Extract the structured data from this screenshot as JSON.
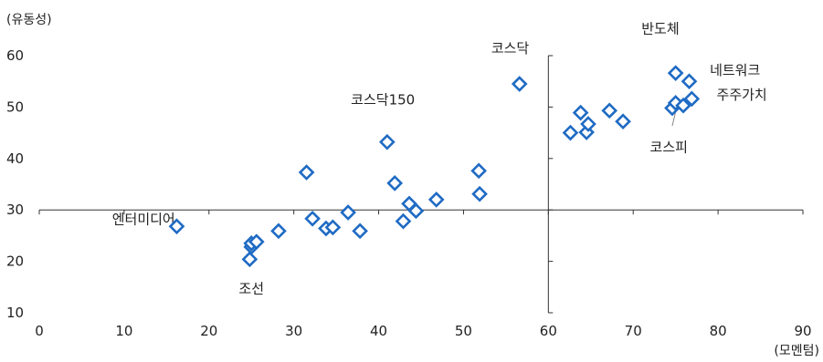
{
  "chart_data": {
    "type": "scatter",
    "xlabel": "(모멘텀)",
    "ylabel": "(유동성)",
    "xlim": [
      0,
      90
    ],
    "ylim": [
      10,
      60
    ],
    "xticks": [
      "0",
      "10",
      "20",
      "30",
      "40",
      "50",
      "60",
      "70",
      "80",
      "90"
    ],
    "yticks": [
      "10",
      "20",
      "30",
      "40",
      "50",
      "60"
    ],
    "reference_lines": {
      "x": 60,
      "y": 30
    },
    "grid": false,
    "marker": "diamond",
    "color": "#1f6bc4",
    "points": [
      {
        "x": 16.2,
        "y": 26.8
      },
      {
        "x": 24.8,
        "y": 20.4
      },
      {
        "x": 25.0,
        "y": 22.8
      },
      {
        "x": 25.0,
        "y": 23.5
      },
      {
        "x": 25.6,
        "y": 23.8
      },
      {
        "x": 28.2,
        "y": 25.9
      },
      {
        "x": 31.5,
        "y": 37.3
      },
      {
        "x": 32.2,
        "y": 28.3
      },
      {
        "x": 33.8,
        "y": 26.4
      },
      {
        "x": 34.6,
        "y": 26.6
      },
      {
        "x": 36.4,
        "y": 29.5
      },
      {
        "x": 37.8,
        "y": 25.9
      },
      {
        "x": 41.0,
        "y": 43.2
      },
      {
        "x": 41.9,
        "y": 35.2
      },
      {
        "x": 42.9,
        "y": 27.8
      },
      {
        "x": 43.6,
        "y": 31.2
      },
      {
        "x": 44.4,
        "y": 29.8
      },
      {
        "x": 46.8,
        "y": 32.0
      },
      {
        "x": 51.8,
        "y": 37.6
      },
      {
        "x": 51.9,
        "y": 33.1
      },
      {
        "x": 56.6,
        "y": 54.5
      },
      {
        "x": 62.6,
        "y": 45.0
      },
      {
        "x": 63.8,
        "y": 48.9
      },
      {
        "x": 64.5,
        "y": 45.1
      },
      {
        "x": 64.7,
        "y": 46.7
      },
      {
        "x": 67.2,
        "y": 49.3
      },
      {
        "x": 68.8,
        "y": 47.2
      },
      {
        "x": 74.6,
        "y": 49.8
      },
      {
        "x": 75.0,
        "y": 50.8
      },
      {
        "x": 75.0,
        "y": 56.6
      },
      {
        "x": 75.9,
        "y": 50.3
      },
      {
        "x": 76.6,
        "y": 55.0
      },
      {
        "x": 76.9,
        "y": 51.6
      }
    ],
    "annotations": [
      {
        "text": "엔터미디어",
        "x": 12.3,
        "y": 27.3
      },
      {
        "text": "조선",
        "x": 25.0,
        "y": 13.8
      },
      {
        "text": "코스닥150",
        "x": 40.5,
        "y": 50.5
      },
      {
        "text": "코스닥",
        "x": 55.5,
        "y": 60.5
      },
      {
        "text": "반도체",
        "x": 73.2,
        "y": 64.3
      },
      {
        "text": "네트워크",
        "x": 82.0,
        "y": 56.3
      },
      {
        "text": "주주가치",
        "x": 82.8,
        "y": 51.5
      },
      {
        "text": "코스피",
        "x": 74.2,
        "y": 41.3
      }
    ]
  }
}
